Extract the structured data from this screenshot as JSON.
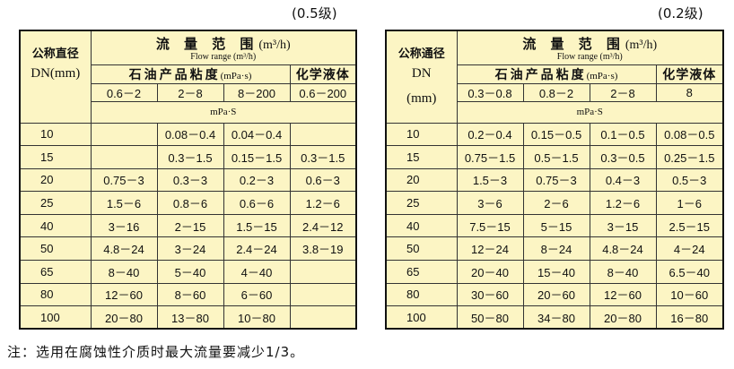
{
  "left": {
    "grade": "(0.5级)",
    "dn_header_cn": "公称直径",
    "dn_header_en": "DN(mm)",
    "flow_cn": "流 量 范 围",
    "flow_unit": "(m³/h)",
    "flow_en": "Flow      range (m³/h)",
    "petroleum": "石油产品粘度",
    "petroleum_unit": "(mPa·s)",
    "chemical": "化学液体",
    "viscosities": [
      "0.6－2",
      "2－8",
      "8－200",
      "0.6－200"
    ],
    "unit_row": "mPa·S",
    "rows": [
      [
        "10",
        "",
        "0.08－0.4",
        "0.04－0.4",
        ""
      ],
      [
        "15",
        "",
        "0.3－1.5",
        "0.15－1.5",
        "0.3－1.5"
      ],
      [
        "20",
        "0.75－3",
        "0.3－3",
        "0.2－3",
        "0.6－3"
      ],
      [
        "25",
        "1.5－6",
        "0.8－6",
        "0.6－6",
        "1.2－6"
      ],
      [
        "40",
        "3－16",
        "2－15",
        "1.5－15",
        "2.4－12"
      ],
      [
        "50",
        "4.8－24",
        "3－24",
        "2.4－24",
        "3.8－19"
      ],
      [
        "65",
        "8－40",
        "5－40",
        "4－40",
        ""
      ],
      [
        "80",
        "12－60",
        "8－60",
        "6－60",
        ""
      ],
      [
        "100",
        "20－80",
        "13－80",
        "10－80",
        ""
      ]
    ]
  },
  "right": {
    "grade": "(0.2级)",
    "dn_header_cn": "公称通径",
    "dn_header_en": "DN",
    "dn_header_unit": "(mm)",
    "flow_cn": "流 量 范 围",
    "flow_unit": "(m³/h)",
    "flow_en": "Flow      range (m³/h)",
    "petroleum": "石油产品粘度",
    "petroleum_unit": "(mPa·s)",
    "chemical": "化学液体",
    "viscosities": [
      "0.3－0.8",
      "0.8－2",
      "2－8",
      "8"
    ],
    "unit_row": "mPa·S",
    "rows": [
      [
        "10",
        "0.2－0.4",
        "0.15－0.5",
        "0.1－0.5",
        "0.08－0.5"
      ],
      [
        "15",
        "0.75－1.5",
        "0.5－1.5",
        "0.3－0.5",
        "0.25－1.5"
      ],
      [
        "20",
        "1.5－3",
        "0.75－3",
        "0.4－3",
        "0.5－3"
      ],
      [
        "25",
        "3－6",
        "2－6",
        "1.2－6",
        "1－6"
      ],
      [
        "40",
        "7.5－15",
        "5－15",
        "3－15",
        "2.5－15"
      ],
      [
        "50",
        "12－24",
        "8－24",
        "4.8－24",
        "4－24"
      ],
      [
        "65",
        "20－40",
        "15－40",
        "8－40",
        "6.5－40"
      ],
      [
        "80",
        "30－60",
        "20－60",
        "12－60",
        "10－60"
      ],
      [
        "100",
        "50－80",
        "34－80",
        "20－80",
        "16－80"
      ]
    ]
  },
  "note": "注：选用在腐蚀性介质时最大流量要减少1/3。",
  "colors": {
    "table_bg": "#fcf5c4",
    "border": "#111111"
  }
}
